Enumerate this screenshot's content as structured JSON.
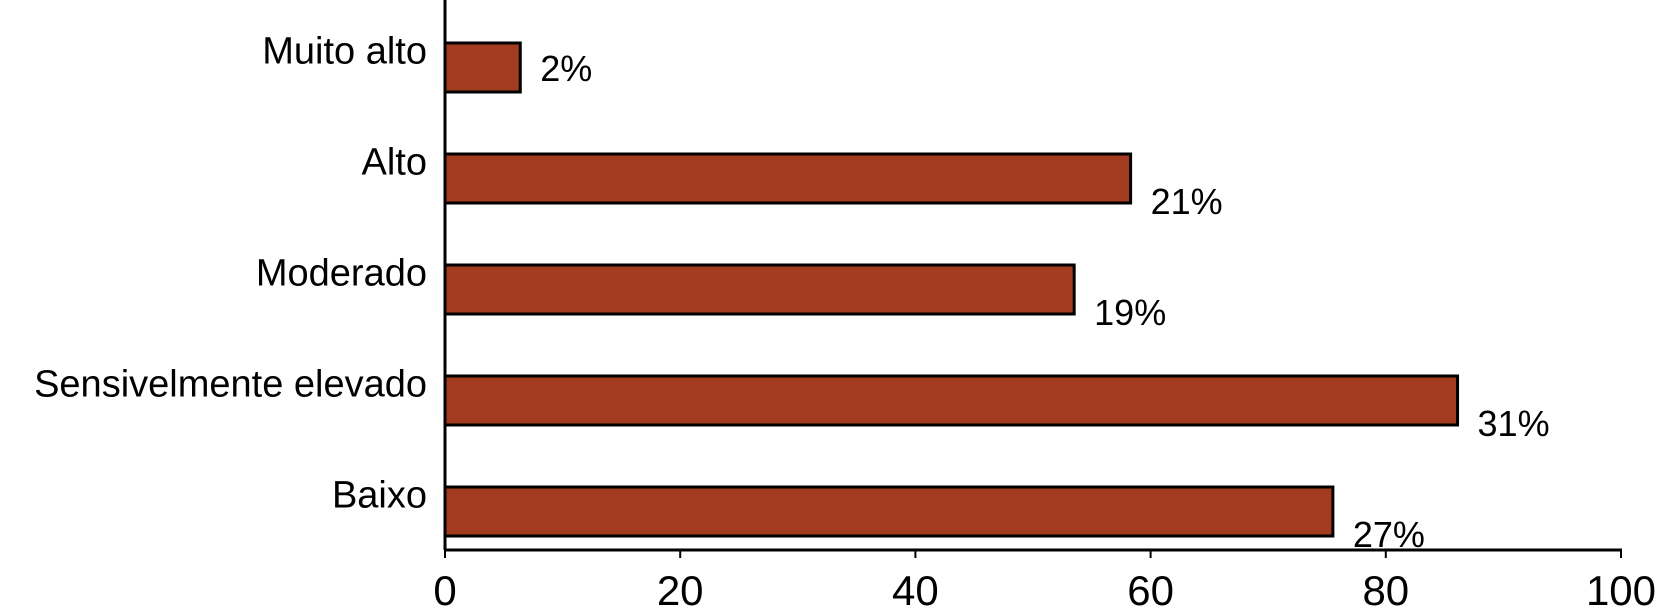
{
  "chart_data": {
    "type": "barh",
    "categories": [
      "Muito alto",
      "Alto",
      "Moderado",
      "Sensivelmente elevado",
      "Baixo"
    ],
    "values": [
      6.4,
      58.3,
      53.5,
      86.1,
      75.5
    ],
    "annotations": [
      "2%",
      "21%",
      "19%",
      "31%",
      "27%"
    ],
    "color": "#a33b20",
    "xlim": [
      0,
      100
    ],
    "xticks": [
      0,
      20,
      40,
      60,
      80,
      100
    ],
    "grid": false
  }
}
